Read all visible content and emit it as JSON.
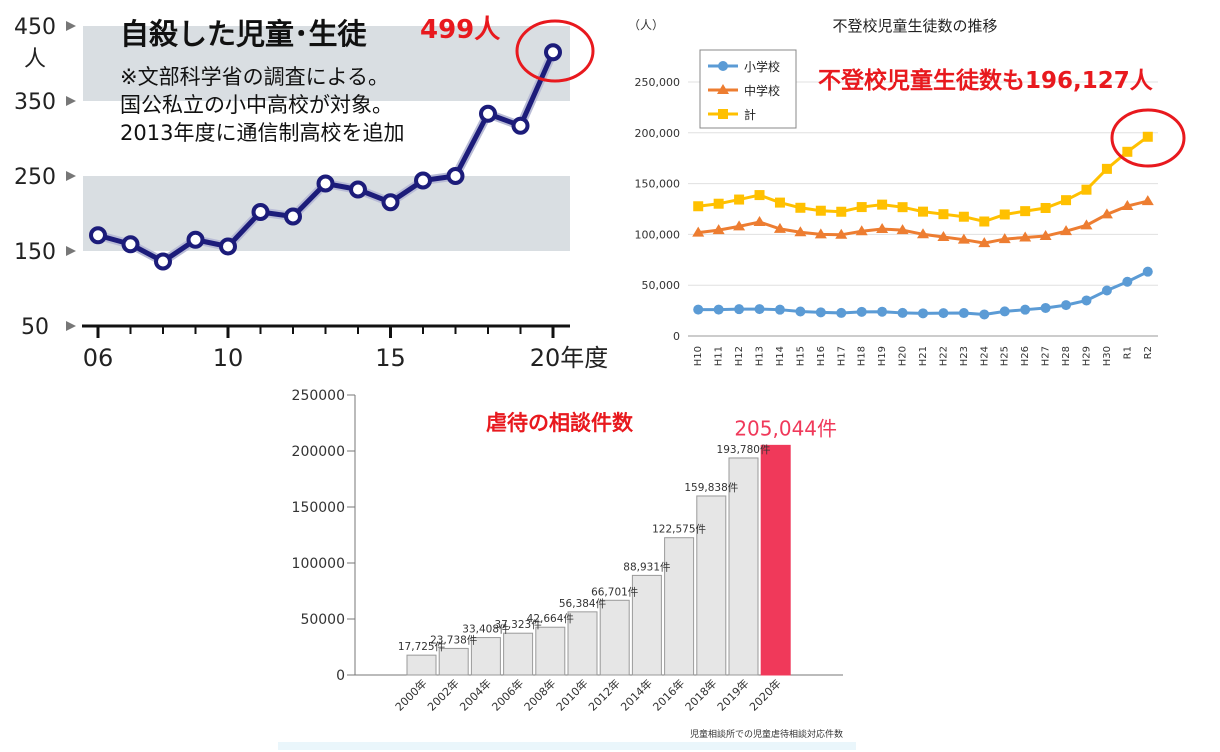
{
  "chart_data": [
    {
      "type": "line",
      "title": "自殺した児童･生徒",
      "notes": [
        "※文部科学省の調査による。",
        "国公私立の小中高校が対象。",
        "2013年度に通信制高校を追加"
      ],
      "annotation": "499人",
      "y_unit": "人",
      "x_ticks": [
        "06",
        "10",
        "15",
        "20年度"
      ],
      "y_ticks": [
        "450",
        "350",
        "250",
        "150",
        "50"
      ],
      "x": [
        2006,
        2007,
        2008,
        2009,
        2010,
        2011,
        2012,
        2013,
        2014,
        2015,
        2016,
        2017,
        2018,
        2019,
        2020
      ],
      "values": [
        171,
        159,
        136,
        165,
        156,
        202,
        196,
        240,
        232,
        215,
        244,
        250,
        333,
        317,
        415
      ],
      "ylim": [
        50,
        450
      ],
      "xlim": [
        2006,
        2020
      ],
      "colors": {
        "line": "#1c1c7a",
        "band": "#d9dee2",
        "annotation": "#e8191e"
      }
    },
    {
      "type": "line",
      "title": "不登校児童生徒数の推移",
      "y_unit": "（人）",
      "annotation": "不登校児童生徒数も196,127人",
      "legend_position": "top-left",
      "categories": [
        "H10",
        "H11",
        "H12",
        "H13",
        "H14",
        "H15",
        "H16",
        "H17",
        "H18",
        "H19",
        "H20",
        "H21",
        "H22",
        "H23",
        "H24",
        "H25",
        "H26",
        "H27",
        "H28",
        "H29",
        "H30",
        "R1",
        "R2"
      ],
      "y_ticks": [
        "250,000",
        "200,000",
        "150,000",
        "100,000",
        "50,000",
        "0"
      ],
      "ylim": [
        0,
        250000
      ],
      "grid": true,
      "series": [
        {
          "name": "小学校",
          "color": "#5b9bd5",
          "values": [
            26000,
            26000,
            26400,
            26500,
            25900,
            24100,
            23300,
            22700,
            23800,
            23900,
            22700,
            22300,
            22500,
            22600,
            21200,
            24200,
            25900,
            27600,
            30400,
            35000,
            44800,
            53400,
            63300
          ]
        },
        {
          "name": "中学校",
          "color": "#ed7d31",
          "values": [
            101700,
            104200,
            107900,
            112200,
            105400,
            102100,
            100000,
            99600,
            103100,
            105300,
            104200,
            100100,
            97400,
            94800,
            91400,
            95400,
            97000,
            98400,
            103200,
            108900,
            119700,
            127900,
            132800
          ]
        },
        {
          "name": "計",
          "color": "#ffc000",
          "values": [
            127700,
            130200,
            134300,
            138700,
            131300,
            126200,
            123300,
            122300,
            126900,
            129300,
            126800,
            122400,
            119900,
            117400,
            112700,
            119600,
            122900,
            126000,
            133700,
            144000,
            164500,
            181300,
            196100
          ]
        }
      ]
    },
    {
      "type": "bar",
      "title": "虐待の相談件数",
      "footnote": "児童相談所での児童虐待相談対応件数",
      "categories": [
        "2000年",
        "2002年",
        "2004年",
        "2006年",
        "2008年",
        "2010年",
        "2012年",
        "2014年",
        "2016年",
        "2018年",
        "2019年",
        "2020年"
      ],
      "values": [
        17725,
        23738,
        33408,
        37323,
        42664,
        56384,
        66701,
        88931,
        122575,
        159838,
        193780,
        205044
      ],
      "data_labels": [
        "17,725件",
        "23,738件",
        "33,408件",
        "37,323件",
        "42,664件",
        "56,384件",
        "66,701件",
        "88,931件",
        "122,575件",
        "159,838件",
        "193,780件",
        "205,044件"
      ],
      "y_ticks": [
        "250000",
        "200000",
        "150000",
        "100000",
        "50000",
        "0"
      ],
      "ylim": [
        0,
        250000
      ],
      "colors": {
        "bar": "#e6e6e6",
        "bar_stroke": "#9a9a9a",
        "highlight": "#f0395a",
        "title": "#e8191e"
      }
    }
  ]
}
